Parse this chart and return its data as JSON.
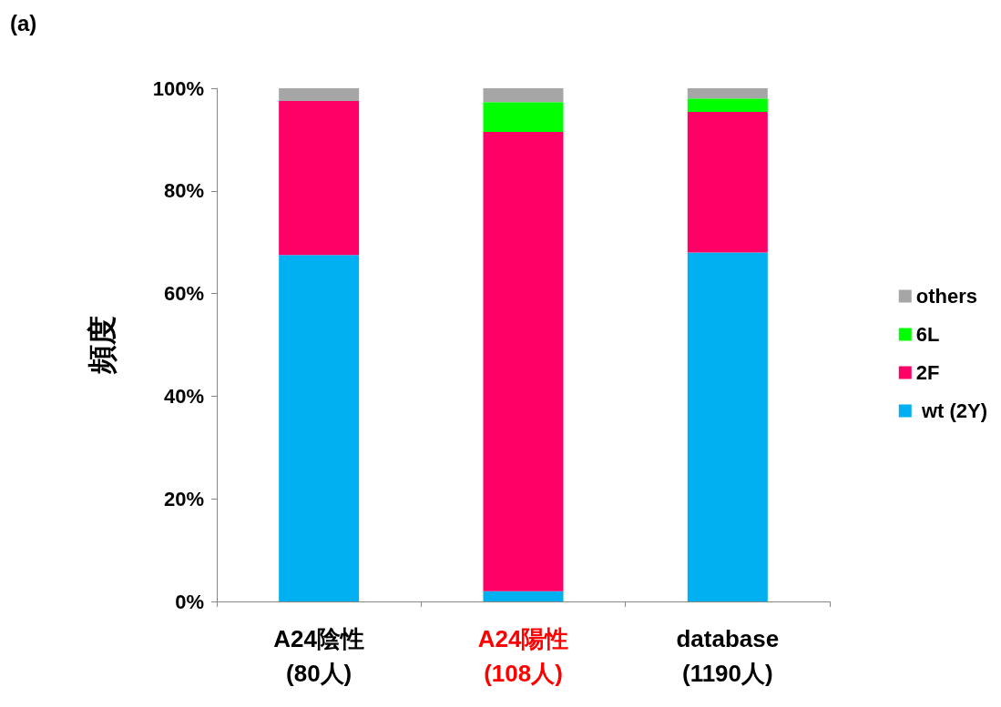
{
  "chart_data": {
    "type": "bar",
    "title": "(a)",
    "ylabel": "頻度",
    "stacked": true,
    "categories": [
      "A24陰性\n(80人)",
      "A24陽性\n(108人)",
      "database\n(1190人)"
    ],
    "series": [
      {
        "name": " wt (2Y)",
        "color": "#00b0f0",
        "values": [
          67.5,
          2,
          68
        ]
      },
      {
        "name": "2F",
        "color": "#ff0066",
        "values": [
          30,
          89.5,
          27.4
        ]
      },
      {
        "name": "6L",
        "color": "#00ff00",
        "values": [
          0,
          5.8,
          2.6
        ]
      },
      {
        "name": "others",
        "color": "#a6a6a6",
        "values": [
          2.5,
          2.7,
          2
        ]
      }
    ],
    "ylim": [
      0,
      100
    ],
    "yticks": [
      {
        "value": 0,
        "label": "0%"
      },
      {
        "value": 20,
        "label": "20%"
      },
      {
        "value": 40,
        "label": "40%"
      },
      {
        "value": 60,
        "label": "60%"
      },
      {
        "value": 80,
        "label": "80%"
      },
      {
        "value": 100,
        "label": "100%"
      }
    ],
    "grid": false,
    "legend": "right"
  }
}
